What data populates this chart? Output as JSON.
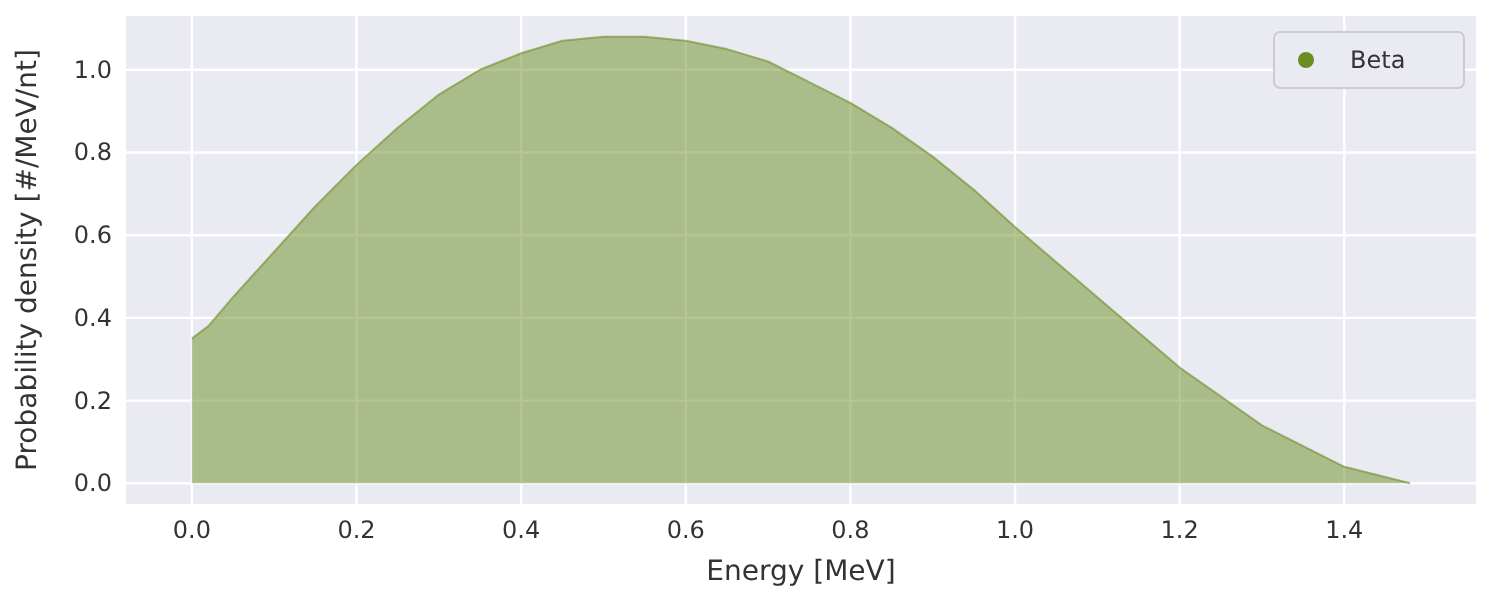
{
  "chart_data": {
    "type": "area",
    "xlabel": "Energy [MeV]",
    "ylabel": "Probability density [#/MeV/nt]",
    "x": [
      0,
      0.02,
      0.05,
      0.1,
      0.15,
      0.2,
      0.25,
      0.3,
      0.35,
      0.4,
      0.45,
      0.5,
      0.55,
      0.6,
      0.65,
      0.7,
      0.75,
      0.8,
      0.85,
      0.9,
      0.95,
      1.0,
      1.1,
      1.2,
      1.3,
      1.4,
      1.48
    ],
    "series": [
      {
        "name": "Beta",
        "color": "#6b8e23",
        "values": [
          0.35,
          0.38,
          0.45,
          0.56,
          0.67,
          0.77,
          0.86,
          0.94,
          1.0,
          1.04,
          1.07,
          1.08,
          1.08,
          1.07,
          1.05,
          1.02,
          0.97,
          0.92,
          0.86,
          0.79,
          0.71,
          0.62,
          0.45,
          0.28,
          0.14,
          0.04,
          0.0
        ]
      }
    ],
    "xlim": [
      -0.08,
      1.56
    ],
    "ylim": [
      -0.05,
      1.13
    ],
    "xticks": [
      {
        "value": 0,
        "label": "0.0"
      },
      0.2,
      0.4,
      0.6,
      0.8,
      {
        "value": 1,
        "label": "1.0"
      },
      1.2,
      1.4
    ],
    "yticks": [
      {
        "value": 0,
        "label": "0.0"
      },
      0.2,
      0.4,
      0.6,
      0.8,
      {
        "value": 1,
        "label": "1.0"
      }
    ],
    "grid": true,
    "legend": "top right"
  }
}
